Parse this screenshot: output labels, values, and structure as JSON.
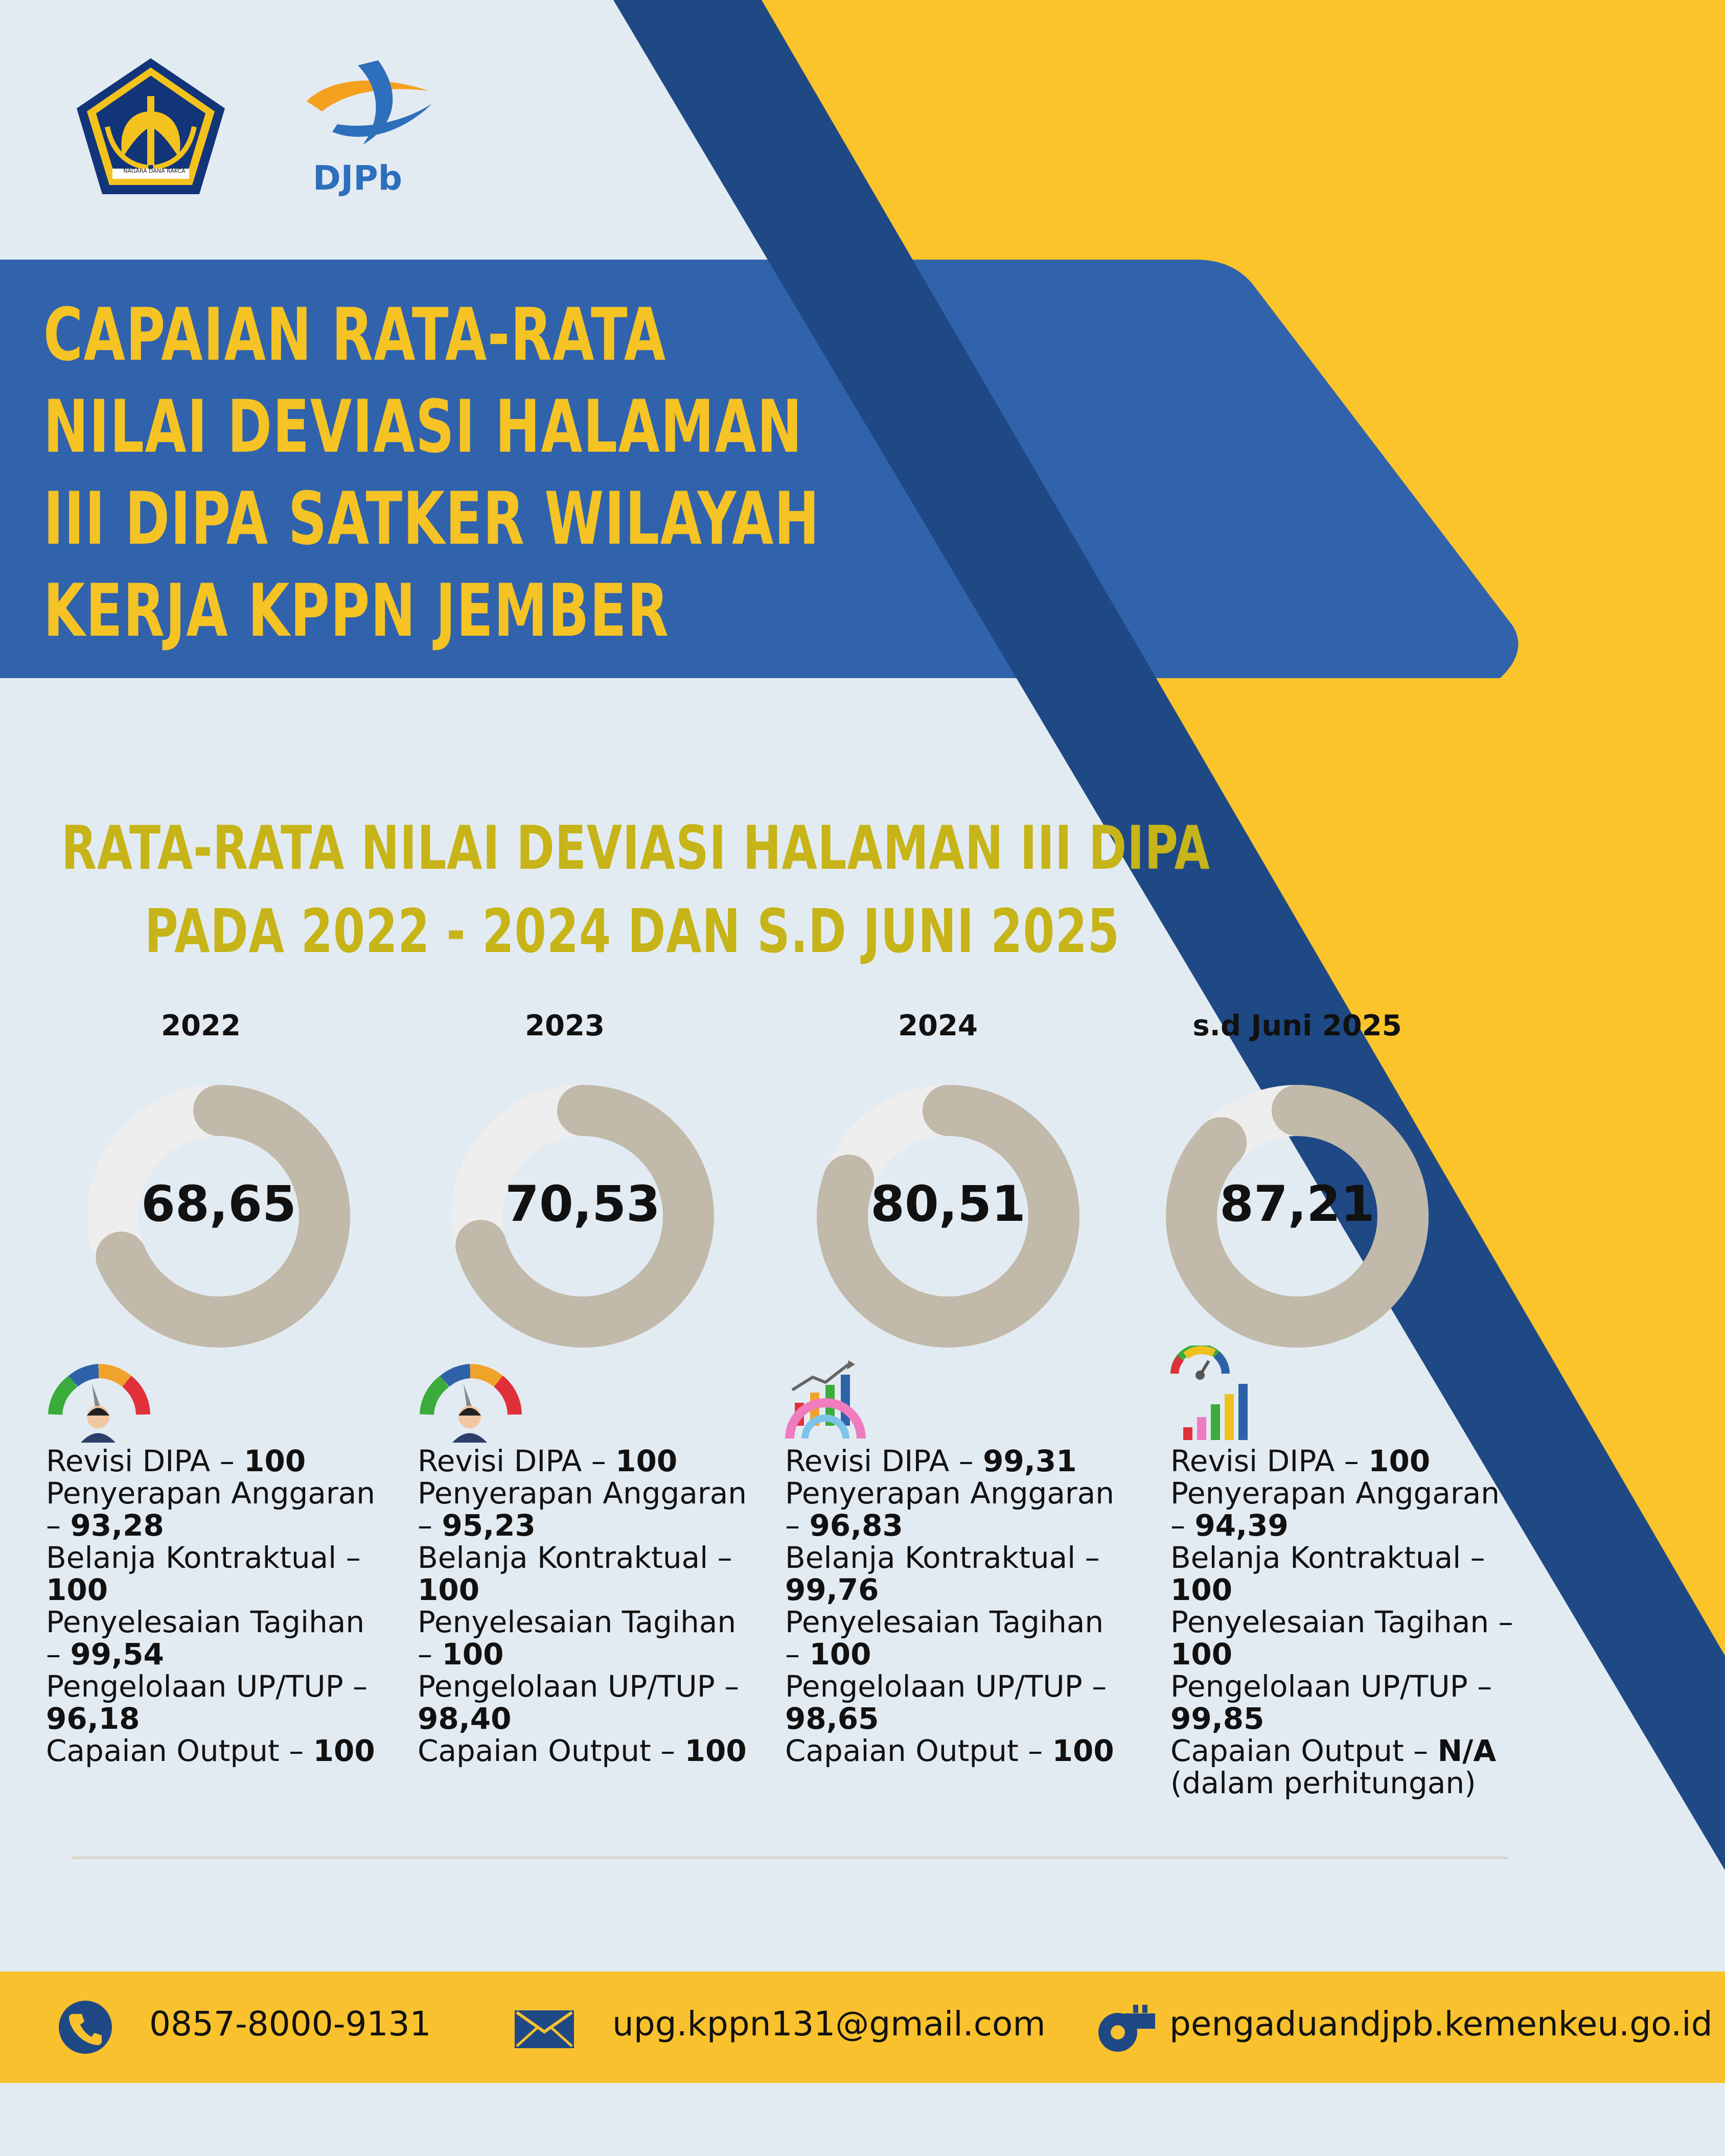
{
  "brand": {
    "djpb_text": "DJPb",
    "seal_text": "NAGARA DANA RAKCA"
  },
  "title_lines": [
    "CAPAIAN RATA-RATA",
    "NILAI DEVIASI HALAMAN",
    "III DIPA SATKER WILAYAH",
    "KERJA KPPN JEMBER"
  ],
  "subtitle_lines": [
    "RATA-RATA NILAI DEVIASI HALAMAN III DIPA",
    "PADA 2022 - 2024 DAN S.D JUNI 2025"
  ],
  "chart_data": {
    "type": "donut",
    "scale_max": 100,
    "categories": [
      "2022",
      "2023",
      "2024",
      "s.d Juni 2025"
    ],
    "values": [
      68.65,
      70.53,
      80.51,
      87.21
    ],
    "value_labels": [
      "68,65",
      "70,53",
      "80,51",
      "87,21"
    ],
    "colors": {
      "filled": "#c1b9a9",
      "remaining": "#eeeeee"
    }
  },
  "columns": [
    {
      "icon": "speedometer-person-icon",
      "items": [
        {
          "label": "Revisi DIPA – ",
          "value": "100"
        },
        {
          "label": "Penyerapan Anggaran – ",
          "value": "93,28"
        },
        {
          "label": "Belanja Kontraktual – ",
          "value": "100"
        },
        {
          "label": "Penyelesaian Tagihan – ",
          "value": "99,54"
        },
        {
          "label": "Pengelolaan UP/TUP – ",
          "value": "96,18"
        },
        {
          "label": "Capaian Output – ",
          "value": "100"
        }
      ]
    },
    {
      "icon": "speedometer-person-icon",
      "items": [
        {
          "label": "Revisi DIPA – ",
          "value": "100"
        },
        {
          "label": "Penyerapan Anggaran – ",
          "value": "95,23"
        },
        {
          "label": "Belanja Kontraktual – ",
          "value": "100"
        },
        {
          "label": "Penyelesaian Tagihan – ",
          "value": "100"
        },
        {
          "label": "Pengelolaan UP/TUP – ",
          "value": "98,40"
        },
        {
          "label": "Capaian Output – ",
          "value": "100"
        }
      ]
    },
    {
      "icon": "growth-chart-gauge-icon",
      "items": [
        {
          "label": "Revisi DIPA – ",
          "value": "99,31"
        },
        {
          "label": "Penyerapan Anggaran – ",
          "value": "96,83"
        },
        {
          "label": "Belanja Kontraktual – ",
          "value": "99,76"
        },
        {
          "label": "Penyelesaian Tagihan – ",
          "value": "100"
        },
        {
          "label": "Pengelolaan UP/TUP – ",
          "value": "98,65"
        },
        {
          "label": "Capaian Output – ",
          "value": "100"
        }
      ]
    },
    {
      "icon": "gauge-bar-chart-icon",
      "items": [
        {
          "label": "Revisi DIPA – ",
          "value": "100"
        },
        {
          "label": "Penyerapan Anggaran – ",
          "value": "94,39"
        },
        {
          "label": "Belanja Kontraktual – ",
          "value": "100"
        },
        {
          "label": "Penyelesaian Tagihan – ",
          "value": "100"
        },
        {
          "label": "Pengelolaan UP/TUP – ",
          "value": "99,85"
        },
        {
          "label": "Capaian Output – ",
          "value": "N/A",
          "note": "(dalam perhitungan)"
        }
      ]
    }
  ],
  "footer": {
    "phone": "0857-8000-9131",
    "email": "upg.kppn131@gmail.com",
    "website": "pengaduandjpb.kemenkeu.go.id"
  },
  "colors": {
    "background": "#e3ebf2",
    "title_band": "#3163ac",
    "diagonal_stripe": "#1f4985",
    "accent_yellow": "#fbc42a",
    "title_text": "#f6c324",
    "subtitle_text": "#c6b418",
    "footer_bg": "#f9c12d",
    "footer_icon": "#1f4985"
  }
}
